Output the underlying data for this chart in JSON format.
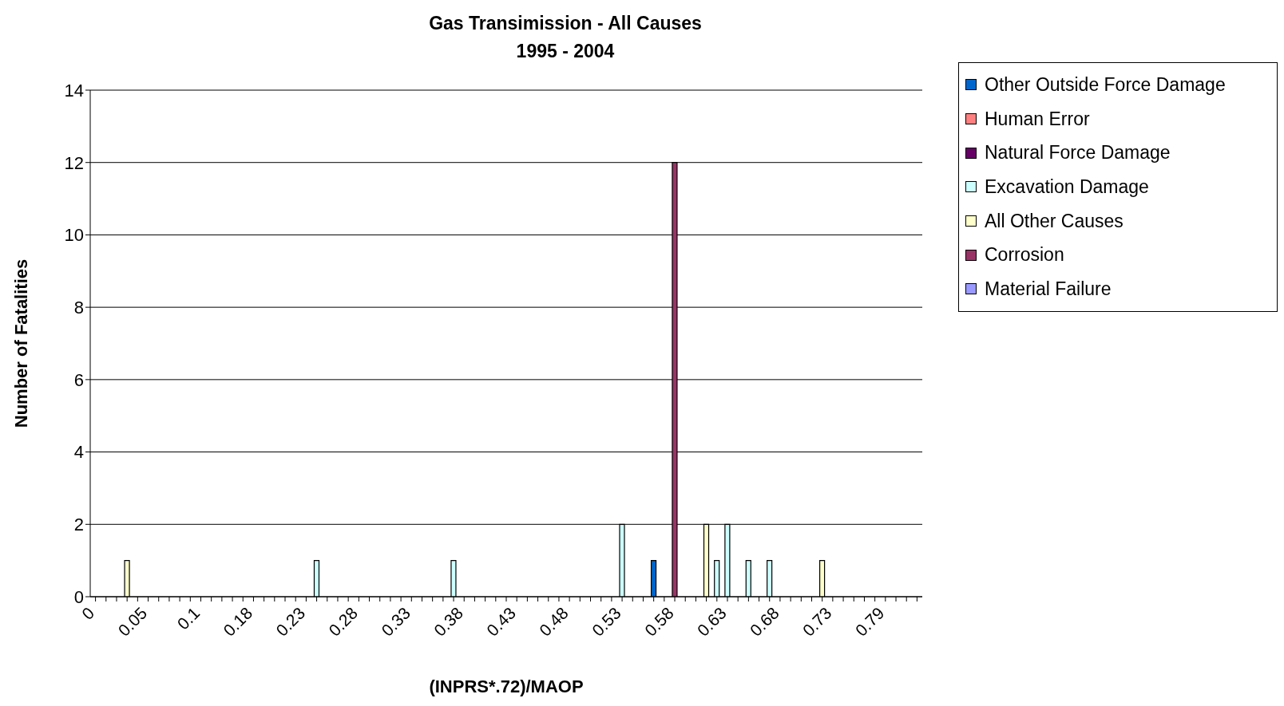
{
  "chart_data": {
    "type": "bar",
    "title": "Gas Transimission - All Causes",
    "subtitle": "1995 - 2004",
    "xlabel": "(INPRS*.72)/MAOP",
    "ylabel": "Number of Fatalities",
    "categories": [
      "0",
      null,
      null,
      null,
      null,
      "0.05",
      null,
      null,
      null,
      null,
      "0.1",
      null,
      null,
      null,
      null,
      "0.18",
      null,
      null,
      null,
      null,
      "0.23",
      null,
      null,
      null,
      null,
      "0.28",
      null,
      null,
      null,
      null,
      "0.33",
      null,
      null,
      null,
      null,
      "0.38",
      null,
      null,
      null,
      null,
      "0.43",
      null,
      null,
      null,
      null,
      "0.48",
      null,
      null,
      null,
      null,
      "0.53",
      null,
      null,
      null,
      null,
      "0.58",
      null,
      null,
      null,
      null,
      "0.63",
      null,
      null,
      null,
      null,
      "0.68",
      null,
      null,
      null,
      null,
      "0.73",
      null,
      null,
      null,
      null,
      "0.79",
      null,
      null,
      null
    ],
    "stacked": true,
    "series": [
      {
        "name": "Other Outside Force Damage",
        "color": "#0066cc",
        "values": [
          null,
          null,
          null,
          null,
          null,
          null,
          null,
          null,
          null,
          null,
          null,
          null,
          null,
          null,
          null,
          null,
          null,
          null,
          null,
          null,
          null,
          null,
          null,
          null,
          null,
          null,
          null,
          null,
          null,
          null,
          null,
          null,
          null,
          null,
          null,
          null,
          null,
          null,
          null,
          null,
          null,
          null,
          null,
          null,
          null,
          null,
          null,
          null,
          null,
          null,
          null,
          null,
          null,
          1,
          null,
          null,
          null,
          null,
          null,
          null,
          null,
          null,
          null,
          null,
          null,
          null,
          null,
          null,
          null,
          null,
          null,
          null,
          null,
          null,
          null,
          null,
          null,
          null,
          null
        ]
      },
      {
        "name": "Human Error",
        "color": "#ff8080",
        "values": [
          null,
          null,
          null,
          null,
          null,
          null,
          null,
          null,
          null,
          null,
          null,
          null,
          null,
          null,
          null,
          null,
          null,
          null,
          null,
          null,
          null,
          null,
          null,
          null,
          null,
          null,
          null,
          null,
          null,
          null,
          null,
          null,
          null,
          null,
          null,
          null,
          null,
          null,
          null,
          null,
          null,
          null,
          null,
          null,
          null,
          null,
          null,
          null,
          null,
          null,
          null,
          null,
          null,
          null,
          null,
          null,
          null,
          null,
          null,
          null,
          null,
          null,
          null,
          null,
          null,
          null,
          null,
          null,
          null,
          null,
          null,
          null,
          null,
          null,
          null,
          null,
          null,
          null,
          null
        ]
      },
      {
        "name": "Natural Force Damage",
        "color": "#660066",
        "values": [
          null,
          null,
          null,
          null,
          null,
          null,
          null,
          null,
          null,
          null,
          null,
          null,
          null,
          null,
          null,
          null,
          null,
          null,
          null,
          null,
          null,
          null,
          null,
          null,
          null,
          null,
          null,
          null,
          null,
          null,
          null,
          null,
          null,
          null,
          null,
          null,
          null,
          null,
          null,
          null,
          null,
          null,
          null,
          null,
          null,
          null,
          null,
          null,
          null,
          null,
          null,
          null,
          null,
          null,
          null,
          null,
          null,
          null,
          null,
          null,
          null,
          null,
          null,
          null,
          null,
          null,
          null,
          null,
          null,
          null,
          null,
          null,
          null,
          null,
          null,
          null,
          null,
          null,
          null
        ]
      },
      {
        "name": "Excavation Damage",
        "color": "#ccffff",
        "values": [
          null,
          null,
          null,
          null,
          null,
          null,
          null,
          null,
          null,
          null,
          null,
          null,
          null,
          null,
          null,
          null,
          null,
          null,
          null,
          null,
          null,
          1,
          null,
          null,
          null,
          null,
          null,
          null,
          null,
          null,
          null,
          null,
          null,
          null,
          1,
          null,
          null,
          null,
          null,
          null,
          null,
          null,
          null,
          null,
          null,
          null,
          null,
          null,
          null,
          null,
          2,
          null,
          null,
          null,
          null,
          null,
          null,
          null,
          null,
          1,
          2,
          null,
          1,
          null,
          1,
          null,
          null,
          null,
          null,
          null,
          null,
          null,
          null,
          null,
          null,
          null,
          null,
          null,
          null
        ]
      },
      {
        "name": "All Other Causes",
        "color": "#ffffcc",
        "values": [
          null,
          null,
          null,
          1,
          null,
          null,
          null,
          null,
          null,
          null,
          null,
          null,
          null,
          null,
          null,
          null,
          null,
          null,
          null,
          null,
          null,
          null,
          null,
          null,
          null,
          null,
          null,
          null,
          null,
          null,
          null,
          null,
          null,
          null,
          null,
          null,
          null,
          null,
          null,
          null,
          null,
          null,
          null,
          null,
          null,
          null,
          null,
          null,
          null,
          null,
          null,
          null,
          null,
          null,
          null,
          null,
          null,
          null,
          2,
          null,
          null,
          null,
          null,
          null,
          null,
          null,
          null,
          null,
          null,
          1,
          null,
          null,
          null,
          null,
          null,
          null,
          null,
          null,
          null
        ]
      },
      {
        "name": "Corrosion",
        "color": "#993366",
        "values": [
          null,
          null,
          null,
          null,
          null,
          null,
          null,
          null,
          null,
          null,
          null,
          null,
          null,
          null,
          null,
          null,
          null,
          null,
          null,
          null,
          null,
          null,
          null,
          null,
          null,
          null,
          null,
          null,
          null,
          null,
          null,
          null,
          null,
          null,
          null,
          null,
          null,
          null,
          null,
          null,
          null,
          null,
          null,
          null,
          null,
          null,
          null,
          null,
          null,
          null,
          null,
          null,
          null,
          null,
          null,
          12,
          null,
          null,
          null,
          null,
          null,
          null,
          null,
          null,
          null,
          null,
          null,
          null,
          null,
          null,
          null,
          null,
          null,
          null,
          null,
          null,
          null,
          null,
          null
        ]
      },
      {
        "name": "Material Failure",
        "color": "#9999ff",
        "values": [
          null,
          null,
          null,
          null,
          null,
          null,
          null,
          null,
          null,
          null,
          null,
          null,
          null,
          null,
          null,
          null,
          null,
          null,
          null,
          null,
          null,
          null,
          null,
          null,
          null,
          null,
          null,
          null,
          null,
          null,
          null,
          null,
          null,
          null,
          null,
          null,
          null,
          null,
          null,
          null,
          null,
          null,
          null,
          null,
          null,
          null,
          null,
          null,
          null,
          null,
          null,
          null,
          null,
          null,
          null,
          null,
          null,
          null,
          null,
          null,
          null,
          null,
          null,
          null,
          null,
          null,
          null,
          null,
          null,
          null,
          null,
          null,
          null,
          null,
          null,
          null,
          null,
          null,
          null
        ]
      }
    ],
    "ylim": [
      0,
      14
    ],
    "yticks": [
      0,
      2,
      4,
      6,
      8,
      10,
      12,
      14
    ],
    "grid": "y",
    "legend": "top right"
  }
}
